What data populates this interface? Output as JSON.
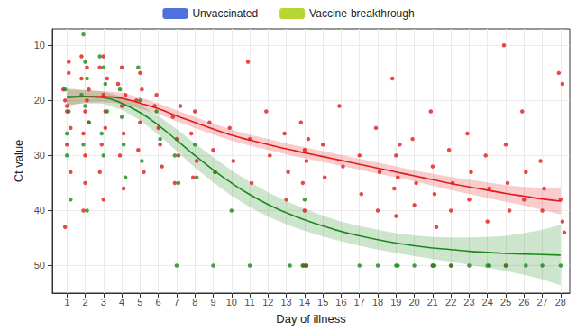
{
  "chart_data": {
    "type": "scatter",
    "x_label": "Day of illness",
    "y_label": "Ct value",
    "xlim": [
      0.2,
      28.5
    ],
    "xticks": [
      1,
      2,
      3,
      4,
      5,
      6,
      7,
      8,
      9,
      10,
      11,
      12,
      13,
      14,
      15,
      16,
      17,
      18,
      19,
      20,
      21,
      22,
      23,
      24,
      25,
      26,
      27,
      28
    ],
    "ylim": [
      7,
      55
    ],
    "yticks": [
      10,
      20,
      30,
      40,
      50
    ],
    "y_inverted": true,
    "grid": true,
    "legend": "top",
    "series": [
      {
        "name": "Unvaccinated",
        "color": "#e31a1c",
        "marker": "circle",
        "x": [
          0.9,
          1,
          1.1,
          0.8,
          1.2,
          1,
          0.9,
          1.1,
          1.2,
          1,
          1.8,
          2,
          2.1,
          1.9,
          2.2,
          2,
          1.8,
          2.1,
          2,
          2.2,
          1.9,
          2.8,
          3,
          3.1,
          2.9,
          3.2,
          3,
          3.1,
          2.8,
          3,
          3.8,
          4,
          4.1,
          3.9,
          4.2,
          4,
          4.1,
          4.8,
          5,
          5.1,
          4.9,
          5.2,
          5,
          5.8,
          6,
          6.1,
          5.9,
          6.2,
          6.8,
          7,
          7.1,
          6.9,
          7.2,
          7.8,
          8,
          8.1,
          7.9,
          8.8,
          9,
          9.1,
          9.9,
          10.1,
          10.9,
          11,
          11.1,
          11.9,
          12.1,
          12.9,
          13.1,
          13,
          13.8,
          14,
          14.1,
          13.9,
          14.2,
          14,
          14,
          14.1,
          13.9,
          15,
          15.1,
          15.9,
          16.1,
          17,
          17.1,
          17.9,
          18.1,
          18,
          18.8,
          19,
          19.1,
          18.9,
          19.2,
          19,
          19.9,
          20.1,
          20,
          20.9,
          21,
          21.1,
          21,
          21.2,
          21.9,
          22.1,
          22,
          22,
          22.9,
          23.1,
          23,
          23.9,
          24.1,
          24,
          24.9,
          25,
          25.1,
          25,
          25.2,
          25.9,
          26.1,
          26,
          26.9,
          27.1,
          27,
          27.9,
          28.1,
          28,
          28.2,
          28.1
        ],
        "values": [
          43,
          22,
          15,
          18,
          25,
          28,
          20,
          13,
          33,
          21,
          16,
          22,
          14,
          26,
          18,
          30,
          12,
          20,
          35,
          24,
          40,
          14,
          19,
          22,
          28,
          16,
          12,
          25,
          33,
          38,
          17,
          21,
          26,
          30,
          19,
          14,
          36,
          20,
          24,
          18,
          29,
          33,
          15,
          21,
          25,
          28,
          19,
          32,
          23,
          27,
          30,
          35,
          21,
          26,
          22,
          31,
          34,
          24,
          29,
          33,
          25,
          31,
          13,
          27,
          35,
          22,
          30,
          26,
          33,
          38,
          24,
          29,
          31,
          35,
          27,
          40,
          50,
          50,
          50,
          28,
          34,
          21,
          32,
          30,
          37,
          25,
          33,
          40,
          16,
          30,
          34,
          36,
          28,
          41,
          27,
          35,
          39,
          22,
          32,
          37,
          50,
          43,
          29,
          35,
          40,
          50,
          26,
          33,
          38,
          30,
          36,
          42,
          10,
          28,
          35,
          50,
          40,
          22,
          33,
          38,
          31,
          36,
          40,
          15,
          42,
          38,
          44,
          17
        ],
        "fit_x": [
          1,
          2,
          3,
          4,
          5,
          6,
          7,
          8,
          9,
          10,
          11,
          12,
          13,
          14,
          15,
          16,
          17,
          18,
          19,
          20,
          21,
          22,
          23,
          24,
          25,
          26,
          27,
          28
        ],
        "fit": [
          19.5,
          19.3,
          19.3,
          19.6,
          20.5,
          21.5,
          22.8,
          24,
          25.2,
          26.3,
          27.2,
          28,
          28.8,
          29.5,
          30.2,
          30.9,
          31.6,
          32.3,
          33,
          33.7,
          34.4,
          35.1,
          35.7,
          36.3,
          36.9,
          37.4,
          37.9,
          38.3
        ],
        "fit_lower": [
          18,
          18.2,
          18.3,
          18.6,
          19.5,
          20.5,
          21.8,
          23,
          24.2,
          25.3,
          26.2,
          27,
          27.8,
          28.5,
          29.2,
          29.9,
          30.6,
          31.3,
          32,
          32.7,
          33.3,
          33.9,
          34.4,
          34.9,
          35.4,
          35.7,
          35.9,
          35.9
        ],
        "fit_upper": [
          21,
          20.4,
          20.3,
          20.6,
          21.5,
          22.5,
          23.8,
          25,
          26.2,
          27.3,
          28.2,
          29,
          29.8,
          30.5,
          31.2,
          31.9,
          32.6,
          33.3,
          34,
          34.7,
          35.5,
          36.3,
          37,
          37.7,
          38.4,
          39.1,
          39.9,
          40.7
        ]
      },
      {
        "name": "Vaccine-breakthrough",
        "color": "#1a8a1a",
        "marker": "circle",
        "x": [
          0.9,
          1,
          1.1,
          1.2,
          1,
          1.9,
          2,
          2.1,
          1.8,
          2.2,
          2,
          2.1,
          1.9,
          2.8,
          3,
          3.1,
          3.2,
          2.9,
          3,
          3.9,
          4,
          4.1,
          4.2,
          4.9,
          5,
          5.1,
          5.9,
          6.1,
          7,
          6.9,
          7.1,
          8,
          8.1,
          9,
          9.1,
          10,
          11,
          13.2,
          13.9,
          14.1,
          14,
          17,
          18,
          19,
          19.1,
          20,
          21,
          21.1,
          22,
          23,
          24,
          24.1,
          25,
          26.1,
          27,
          28
        ],
        "values": [
          18,
          26,
          22,
          38,
          30,
          8,
          13,
          16,
          19,
          24,
          21,
          40,
          28,
          12,
          14,
          17,
          22,
          26,
          30,
          18,
          23,
          28,
          34,
          14,
          20,
          31,
          22,
          27,
          50,
          30,
          35,
          28,
          34,
          50,
          33,
          40,
          50,
          50,
          50,
          50,
          38,
          50,
          50,
          50,
          50,
          50,
          50,
          50,
          50,
          50,
          50,
          50,
          50,
          50,
          50,
          50
        ],
        "fit_x": [
          1,
          2,
          3,
          4,
          5,
          6,
          7,
          8,
          9,
          10,
          11,
          12,
          13,
          14,
          15,
          16,
          17,
          18,
          19,
          20,
          21,
          22,
          23,
          24,
          25,
          26,
          27,
          28
        ],
        "fit": [
          19.3,
          19.3,
          19.5,
          20.5,
          22.2,
          24.5,
          27.2,
          30,
          32.6,
          35,
          37.1,
          38.9,
          40.4,
          41.7,
          42.8,
          43.8,
          44.6,
          45.3,
          45.9,
          46.4,
          46.8,
          47.1,
          47.4,
          47.6,
          47.8,
          47.9,
          48,
          48.1
        ],
        "fit_lower": [
          17.8,
          18.1,
          18.4,
          19.3,
          20.8,
          22.8,
          25.2,
          27.8,
          30.3,
          32.7,
          34.8,
          36.7,
          38.3,
          39.7,
          40.9,
          42,
          42.8,
          43.5,
          44.1,
          44.5,
          44.8,
          44.9,
          44.9,
          44.8,
          44.6,
          44.1,
          43.5,
          42.6
        ],
        "fit_upper": [
          20.8,
          20.5,
          20.6,
          21.7,
          23.6,
          26.2,
          29.2,
          32.2,
          34.9,
          37.3,
          39.4,
          41.1,
          42.5,
          43.7,
          44.7,
          45.6,
          46.4,
          47.1,
          47.7,
          48.3,
          48.8,
          49.3,
          49.9,
          50.4,
          51,
          51.7,
          52.5,
          53.6
        ]
      }
    ]
  }
}
